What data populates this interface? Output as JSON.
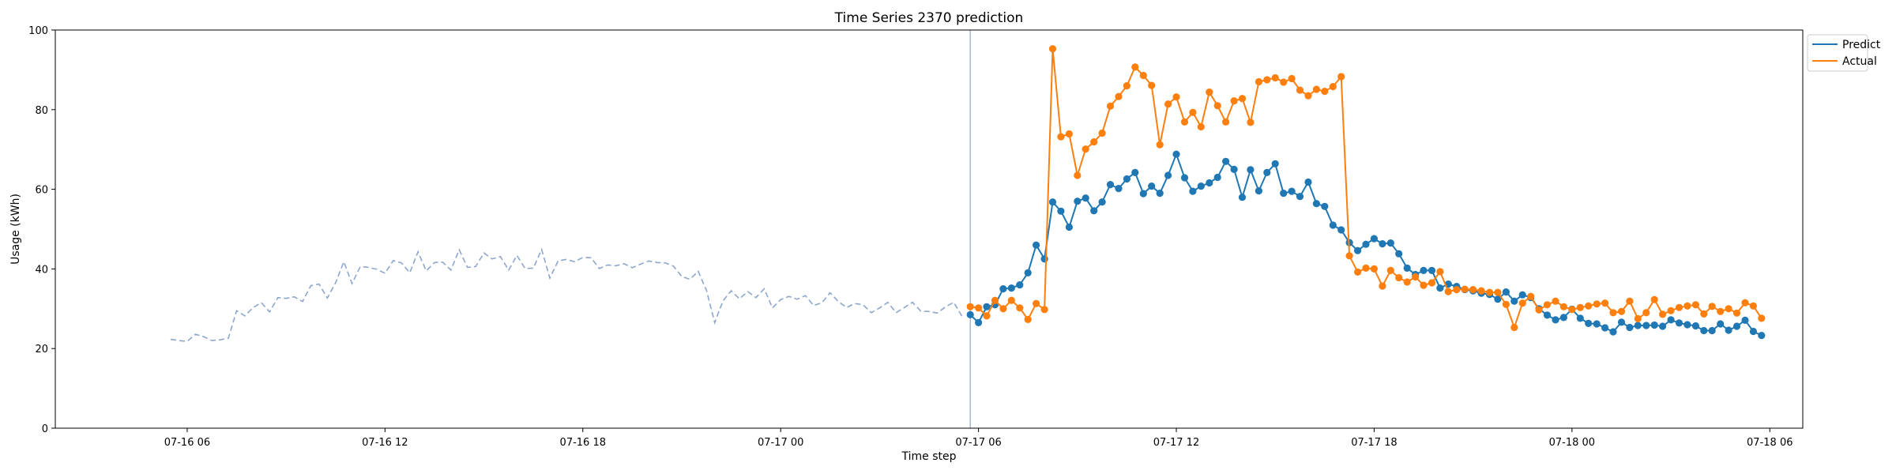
{
  "chart_data": {
    "type": "line",
    "title": "Time Series 2370 prediction",
    "xlabel": "Time step",
    "ylabel": "Usage (kWh)",
    "ylim": [
      0,
      100
    ],
    "yticks": [
      0,
      20,
      40,
      60,
      80,
      100
    ],
    "xlim": [
      "2023-07-16 02:00",
      "2023-07-18 07:00"
    ],
    "xticks": [
      {
        "t": "2023-07-16 06:00",
        "label": "07-16 06"
      },
      {
        "t": "2023-07-16 12:00",
        "label": "07-16 12"
      },
      {
        "t": "2023-07-16 18:00",
        "label": "07-16 18"
      },
      {
        "t": "2023-07-17 00:00",
        "label": "07-17 00"
      },
      {
        "t": "2023-07-17 06:00",
        "label": "07-17 06"
      },
      {
        "t": "2023-07-17 12:00",
        "label": "07-17 12"
      },
      {
        "t": "2023-07-17 18:00",
        "label": "07-17 18"
      },
      {
        "t": "2023-07-18 00:00",
        "label": "07-18 00"
      },
      {
        "t": "2023-07-18 06:00",
        "label": "07-18 06"
      }
    ],
    "grid": false,
    "legend_position": "upper-right outside",
    "colors": {
      "predict": "#1f77b4",
      "actual": "#ff7f0e",
      "history": "#8da6cc",
      "divider": "#8da6cc"
    },
    "forecast_start": "2023-07-17 05:45",
    "history": {
      "start": "2023-07-16 05:30",
      "step_minutes": 15,
      "values": [
        22.3,
        22.0,
        21.8,
        23.6,
        23.0,
        22.0,
        22.2,
        22.6,
        29.5,
        28.2,
        30.3,
        31.5,
        29.2,
        32.8,
        32.6,
        33.0,
        31.8,
        35.8,
        36.2,
        32.7,
        36.5,
        41.8,
        36.3,
        40.6,
        40.4,
        39.9,
        38.9,
        42.1,
        41.5,
        39.0,
        44.3,
        39.5,
        41.6,
        41.7,
        39.7,
        44.8,
        40.4,
        40.6,
        44.0,
        42.5,
        43.1,
        39.7,
        43.4,
        40.1,
        40.2,
        44.9,
        37.7,
        42.0,
        42.4,
        41.8,
        42.9,
        42.8,
        40.1,
        41.0,
        40.8,
        41.3,
        40.3,
        41.2,
        42.0,
        41.6,
        41.5,
        40.7,
        38.1,
        37.4,
        39.4,
        34.6,
        26.5,
        32.0,
        34.5,
        32.5,
        34.3,
        32.8,
        35.0,
        30.2,
        32.3,
        33.1,
        32.4,
        33.3,
        30.8,
        31.5,
        34.0,
        31.8,
        30.3,
        31.3,
        31.0,
        29.0,
        30.2,
        31.6,
        29.0,
        30.3,
        31.6,
        29.4,
        29.3,
        28.9,
        30.5,
        31.6,
        28.1
      ]
    },
    "series": [
      {
        "name": "Predict",
        "start": "2023-07-17 05:45",
        "step_minutes": 15,
        "values": [
          28.5,
          26.5,
          30.5,
          31.0,
          35.0,
          35.2,
          36.0,
          39.0,
          46.0,
          42.5,
          56.8,
          54.5,
          50.5,
          57.0,
          57.8,
          54.6,
          56.8,
          61.2,
          60.2,
          62.6,
          64.2,
          58.9,
          60.8,
          59.0,
          63.5,
          68.8,
          62.9,
          59.5,
          60.8,
          61.6,
          63.0,
          67.0,
          65.0,
          58.0,
          64.9,
          59.6,
          64.2,
          66.4,
          59.0,
          59.5,
          58.2,
          61.8,
          56.4,
          55.7,
          51.0,
          49.8,
          46.6,
          44.6,
          46.2,
          47.6,
          46.3,
          46.5,
          43.8,
          40.2,
          38.6,
          39.6,
          39.6,
          35.2,
          36.2,
          35.6,
          34.8,
          34.5,
          33.9,
          33.6,
          32.4,
          34.2,
          31.9,
          33.5,
          32.8,
          30.0,
          28.4,
          27.2,
          27.8,
          29.9,
          27.6,
          26.3,
          26.2,
          25.2,
          24.2,
          26.6,
          25.3,
          25.8,
          25.8,
          25.9,
          25.6,
          27.2,
          26.4,
          26.0,
          25.7,
          24.5,
          24.5,
          26.2,
          24.6,
          25.6,
          27.1,
          24.3,
          23.3
        ]
      },
      {
        "name": "Actual",
        "start": "2023-07-17 05:45",
        "step_minutes": 15,
        "values": [
          30.5,
          30.2,
          28.2,
          32.1,
          30.0,
          32.1,
          30.2,
          27.3,
          31.3,
          29.8,
          95.3,
          73.2,
          73.9,
          63.5,
          70.1,
          71.9,
          74.1,
          80.9,
          83.3,
          86.0,
          90.7,
          88.6,
          86.1,
          71.2,
          81.4,
          83.2,
          76.9,
          79.3,
          75.7,
          84.4,
          81.0,
          76.9,
          82.2,
          82.8,
          76.8,
          87.0,
          87.5,
          88.0,
          86.9,
          87.8,
          84.9,
          83.5,
          85.1,
          84.6,
          85.8,
          88.3,
          43.3,
          39.2,
          40.2,
          40.0,
          35.7,
          39.6,
          37.8,
          36.7,
          38.0,
          35.9,
          36.5,
          39.3,
          34.3,
          34.8,
          34.9,
          34.8,
          34.5,
          34.1,
          34.1,
          31.1,
          25.3,
          31.4,
          33.1,
          29.7,
          31.0,
          31.9,
          30.5,
          29.8,
          30.3,
          30.7,
          31.2,
          31.4,
          29.0,
          29.3,
          31.9,
          27.5,
          29.0,
          32.3,
          28.6,
          29.5,
          30.3,
          30.7,
          31.0,
          28.7,
          30.6,
          29.3,
          30.0,
          28.9,
          31.5,
          30.7,
          27.6
        ]
      }
    ]
  }
}
